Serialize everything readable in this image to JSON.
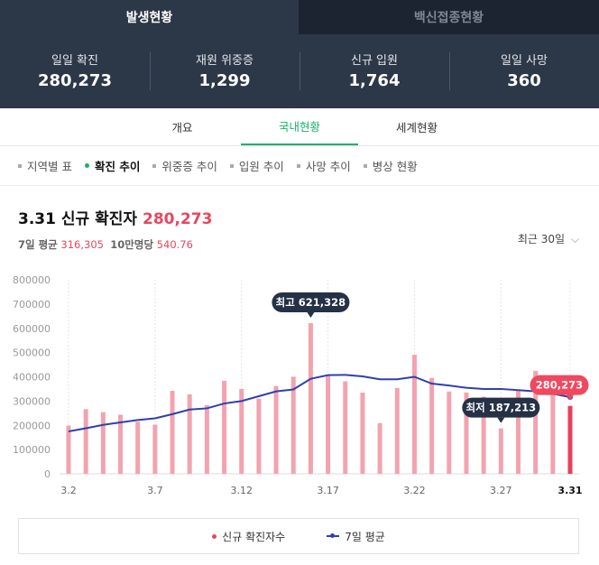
{
  "top_tabs": [
    "발생현황",
    "백신접종현황"
  ],
  "stats": [
    {
      "label": "일일 확진",
      "value": "280,273"
    },
    {
      "label": "재원 위중증",
      "value": "1,299"
    },
    {
      "label": "신규 입원",
      "value": "1,764"
    },
    {
      "label": "일일 사망",
      "value": "360"
    }
  ],
  "subtabs": [
    "개요",
    "국내현황",
    "세계현황"
  ],
  "categories": [
    "지역별 표",
    "확진 추이",
    "위중증 추이",
    "입원 추이",
    "사망 추이",
    "병상 현황"
  ],
  "header": {
    "date": "3.31",
    "title": "신규 확진자",
    "value": "280,273",
    "avg_label": "7일 평균",
    "avg_value": "316,305",
    "per_label": "10만명당",
    "per_value": "540.76",
    "range": "최근 30일"
  },
  "legend": {
    "bars": "신규 확진자수",
    "line": "7일 평균"
  },
  "colors": {
    "bar": "#f2a3af",
    "bar_last": "#e8405c",
    "line": "#2e40b0",
    "accent_green": "#17b26a"
  },
  "chart_data": {
    "type": "bar",
    "x": [
      "3.2",
      "3.3",
      "3.4",
      "3.5",
      "3.6",
      "3.7",
      "3.8",
      "3.9",
      "3.10",
      "3.11",
      "3.12",
      "3.13",
      "3.14",
      "3.15",
      "3.16",
      "3.17",
      "3.18",
      "3.19",
      "3.20",
      "3.21",
      "3.22",
      "3.23",
      "3.24",
      "3.25",
      "3.26",
      "3.27",
      "3.28",
      "3.29",
      "3.30",
      "3.31"
    ],
    "tick_labels": [
      "3.2",
      "3.7",
      "3.12",
      "3.17",
      "3.22",
      "3.27",
      "3.31"
    ],
    "series": [
      {
        "name": "신규 확진자수",
        "type": "bar",
        "values": [
          198800,
          266853,
          254327,
          243628,
          215000,
          202721,
          342446,
          327549,
          282987,
          383665,
          350190,
          309779,
          362338,
          400741,
          621328,
          407017,
          381454,
          334708,
          209169,
          353980,
          490881,
          395598,
          339514,
          335580,
          318130,
          187213,
          347554,
          424641,
          347000,
          280273
        ]
      },
      {
        "name": "7일 평균",
        "type": "line",
        "values": [
          175000,
          188000,
          202000,
          212000,
          222000,
          229000,
          246000,
          265000,
          270000,
          290000,
          300000,
          320000,
          340000,
          348000,
          392000,
          407000,
          408000,
          402000,
          390000,
          390000,
          400000,
          372000,
          364000,
          355000,
          350000,
          350000,
          345000,
          340000,
          330000,
          316305
        ]
      }
    ],
    "ylim": [
      0,
      800000
    ],
    "yticks": [
      "0",
      "100000",
      "200000",
      "300000",
      "400000",
      "500000",
      "600000",
      "700000",
      "800000"
    ],
    "annotations": [
      {
        "label": "최고 621,328",
        "index": 14
      },
      {
        "label": "최저 187,213",
        "index": 25
      },
      {
        "label": "280,273",
        "index": 29
      }
    ]
  }
}
